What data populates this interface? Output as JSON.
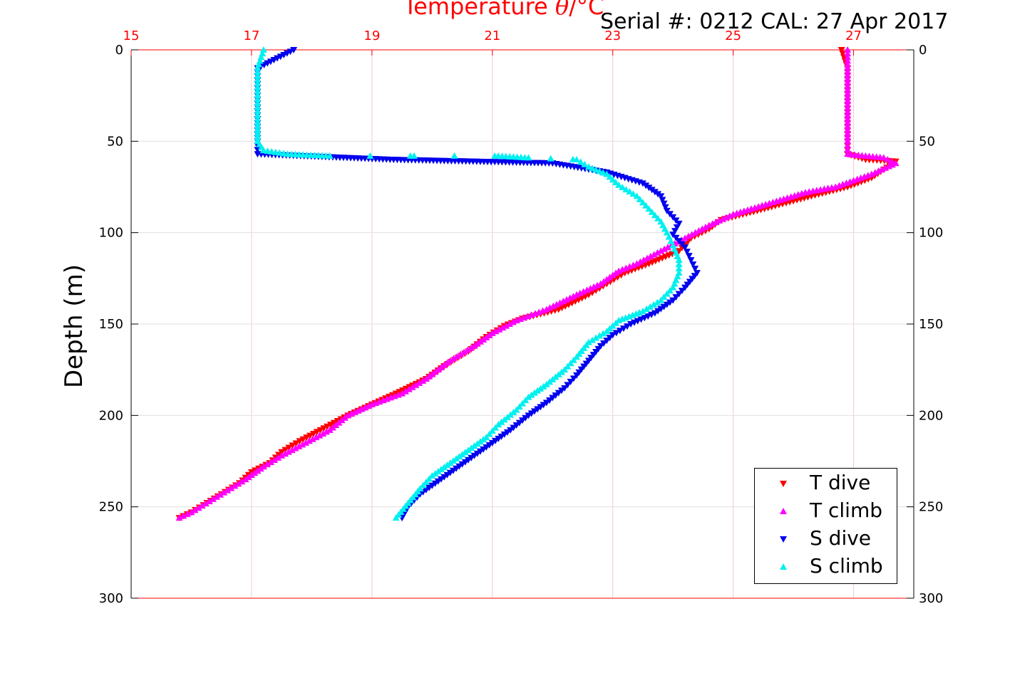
{
  "chart_data": {
    "type": "scatter",
    "title_prefix": "Temperature ",
    "title_symbol": "θ",
    "title_suffix": "/°C",
    "serial_text": "Serial #: 0212  CAL: 27 Apr 2017",
    "ylabel": "Depth (m)",
    "xlim": [
      15,
      28
    ],
    "ylim": [
      0,
      300
    ],
    "y_reversed": true,
    "x_ticks": [
      15,
      17,
      19,
      21,
      23,
      25,
      27
    ],
    "y_ticks": [
      0,
      50,
      100,
      150,
      200,
      250,
      300
    ],
    "grid": true,
    "legend_position": "bottom-right",
    "colors": {
      "axis_x": "#ff0000",
      "grid": "#f2c8d6",
      "axis_y": "#000000"
    },
    "series": [
      {
        "name": "T dive",
        "color": "#ff0000",
        "marker": "triangle-down",
        "points": [
          [
            26.8,
            0
          ],
          [
            26.9,
            10
          ],
          [
            26.9,
            30
          ],
          [
            26.9,
            50
          ],
          [
            26.9,
            57
          ],
          [
            27.2,
            60
          ],
          [
            27.7,
            61
          ],
          [
            27.3,
            70
          ],
          [
            26.9,
            75
          ],
          [
            26.3,
            80
          ],
          [
            25.4,
            88
          ],
          [
            24.8,
            93
          ],
          [
            24.6,
            98
          ],
          [
            24.3,
            103
          ],
          [
            24.1,
            110
          ],
          [
            23.6,
            117
          ],
          [
            23.2,
            122
          ],
          [
            22.9,
            128
          ],
          [
            22.6,
            134
          ],
          [
            22.1,
            142
          ],
          [
            21.5,
            147
          ],
          [
            21.2,
            151
          ],
          [
            20.9,
            157
          ],
          [
            20.6,
            165
          ],
          [
            20.2,
            173
          ],
          [
            19.9,
            180
          ],
          [
            19.4,
            188
          ],
          [
            19.0,
            194
          ],
          [
            18.6,
            200
          ],
          [
            18.2,
            207
          ],
          [
            17.8,
            214
          ],
          [
            17.5,
            220
          ],
          [
            17.3,
            226
          ],
          [
            17.0,
            231
          ],
          [
            16.8,
            237
          ],
          [
            16.5,
            243
          ],
          [
            16.2,
            249
          ],
          [
            16.0,
            253
          ],
          [
            15.8,
            256
          ]
        ]
      },
      {
        "name": "T climb",
        "color": "#ff00ff",
        "marker": "triangle-up",
        "points": [
          [
            26.9,
            0
          ],
          [
            26.9,
            10
          ],
          [
            26.9,
            30
          ],
          [
            26.9,
            50
          ],
          [
            26.9,
            57
          ],
          [
            27.5,
            59
          ],
          [
            27.7,
            62
          ],
          [
            27.3,
            68
          ],
          [
            26.7,
            75
          ],
          [
            26.2,
            78
          ],
          [
            25.6,
            84
          ],
          [
            25.0,
            90
          ],
          [
            24.6,
            96
          ],
          [
            24.2,
            103
          ],
          [
            23.8,
            110
          ],
          [
            23.4,
            117
          ],
          [
            23.1,
            121
          ],
          [
            22.8,
            128
          ],
          [
            22.4,
            134
          ],
          [
            21.9,
            142
          ],
          [
            21.4,
            148
          ],
          [
            21.0,
            155
          ],
          [
            20.7,
            162
          ],
          [
            20.3,
            170
          ],
          [
            19.9,
            180
          ],
          [
            19.5,
            188
          ],
          [
            19.0,
            194
          ],
          [
            18.6,
            200
          ],
          [
            18.3,
            208
          ],
          [
            17.9,
            215
          ],
          [
            17.5,
            222
          ],
          [
            17.2,
            228
          ],
          [
            16.9,
            235
          ],
          [
            16.6,
            241
          ],
          [
            16.3,
            247
          ],
          [
            16.0,
            253
          ],
          [
            15.8,
            256
          ]
        ]
      },
      {
        "name": "S dive",
        "color": "#0000ee",
        "marker": "triangle-down",
        "points": [
          [
            17.7,
            0
          ],
          [
            17.1,
            10
          ],
          [
            17.1,
            25
          ],
          [
            17.1,
            40
          ],
          [
            17.1,
            50
          ],
          [
            17.1,
            57
          ],
          [
            19.3,
            60
          ],
          [
            22.0,
            62
          ],
          [
            22.9,
            67
          ],
          [
            23.5,
            73
          ],
          [
            23.8,
            80
          ],
          [
            23.9,
            88
          ],
          [
            24.1,
            95
          ],
          [
            24.0,
            101
          ],
          [
            24.2,
            108
          ],
          [
            24.3,
            115
          ],
          [
            24.4,
            122
          ],
          [
            24.2,
            130
          ],
          [
            24.0,
            137
          ],
          [
            23.7,
            144
          ],
          [
            23.3,
            150
          ],
          [
            23.0,
            156
          ],
          [
            22.8,
            162
          ],
          [
            22.6,
            170
          ],
          [
            22.4,
            178
          ],
          [
            22.2,
            185
          ],
          [
            21.9,
            193
          ],
          [
            21.6,
            200
          ],
          [
            21.3,
            208
          ],
          [
            21.0,
            215
          ],
          [
            20.7,
            222
          ],
          [
            20.4,
            229
          ],
          [
            20.1,
            236
          ],
          [
            19.8,
            243
          ],
          [
            19.6,
            250
          ],
          [
            19.5,
            256
          ]
        ]
      },
      {
        "name": "S climb",
        "color": "#00f0f0",
        "marker": "triangle-up",
        "points": [
          [
            17.2,
            0
          ],
          [
            17.1,
            10
          ],
          [
            17.1,
            25
          ],
          [
            17.1,
            40
          ],
          [
            17.1,
            50
          ],
          [
            17.2,
            55
          ],
          [
            17.6,
            57
          ],
          [
            18.3,
            58
          ],
          [
            19.7,
            58
          ],
          [
            21.1,
            58
          ],
          [
            21.6,
            59
          ],
          [
            22.4,
            60
          ],
          [
            22.6,
            64
          ],
          [
            22.9,
            68
          ],
          [
            23.1,
            74
          ],
          [
            23.4,
            80
          ],
          [
            23.6,
            87
          ],
          [
            23.8,
            94
          ],
          [
            23.9,
            100
          ],
          [
            24.0,
            107
          ],
          [
            24.1,
            115
          ],
          [
            24.1,
            122
          ],
          [
            24.0,
            130
          ],
          [
            23.8,
            137
          ],
          [
            23.5,
            143
          ],
          [
            23.1,
            148
          ],
          [
            22.9,
            154
          ],
          [
            22.6,
            160
          ],
          [
            22.4,
            168
          ],
          [
            22.2,
            175
          ],
          [
            21.9,
            183
          ],
          [
            21.6,
            190
          ],
          [
            21.4,
            197
          ],
          [
            21.1,
            205
          ],
          [
            20.9,
            212
          ],
          [
            20.6,
            219
          ],
          [
            20.3,
            226
          ],
          [
            20.0,
            233
          ],
          [
            19.8,
            240
          ],
          [
            19.6,
            248
          ],
          [
            19.4,
            256
          ]
        ]
      }
    ]
  }
}
